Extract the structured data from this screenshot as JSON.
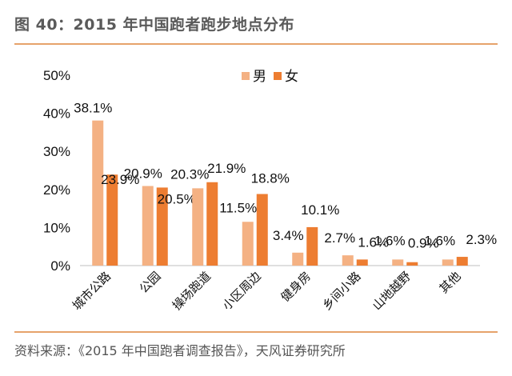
{
  "header": {
    "title": "图 40：2015 年中国跑者跑步地点分布"
  },
  "footer": {
    "source": "资料来源：《2015 年中国跑者调查报告》，天风证券研究所"
  },
  "chart_data": {
    "type": "bar",
    "categories": [
      "城市公路",
      "公园",
      "操场跑道",
      "小区周边",
      "健身房",
      "乡间小路",
      "山地越野",
      "其他"
    ],
    "series": [
      {
        "name": "男",
        "values": [
          38.1,
          20.9,
          20.3,
          11.5,
          3.4,
          2.7,
          1.6,
          1.6
        ],
        "color": "#f4b183"
      },
      {
        "name": "女",
        "values": [
          23.9,
          20.5,
          21.9,
          18.8,
          10.1,
          1.6,
          0.9,
          2.3
        ],
        "color": "#ed7d31"
      }
    ],
    "ylim": [
      0,
      50
    ],
    "yticks": [
      "0%",
      "10%",
      "20%",
      "30%",
      "40%",
      "50%"
    ],
    "value_suffix": "%",
    "legend": "top-center",
    "grid": false
  }
}
